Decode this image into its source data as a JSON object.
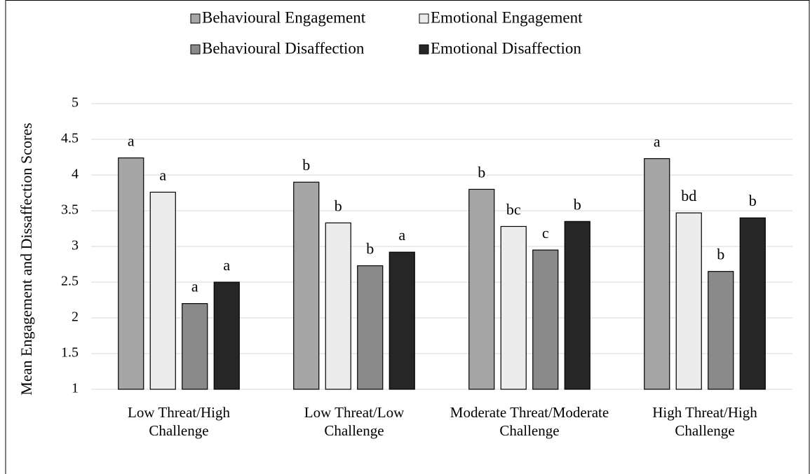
{
  "chart_data": {
    "type": "bar",
    "y_label": "Mean Engagement and Dissaffection Scores",
    "categories": [
      "Low Threat/High Challenge",
      "Low Threat/Low Challenge",
      "Moderate Threat/Moderate Challenge",
      "High Threat/High Challenge"
    ],
    "series": [
      {
        "name": "Behavioural Engagement",
        "color": "#a6a6a6",
        "values": [
          4.24,
          3.9,
          3.8,
          4.23
        ],
        "labels": [
          "a",
          "b",
          "b",
          "a"
        ]
      },
      {
        "name": "Emotional Engagement",
        "color": "#ececec",
        "values": [
          3.76,
          3.33,
          3.28,
          3.47
        ],
        "labels": [
          "a",
          "b",
          "bc",
          "bd"
        ]
      },
      {
        "name": "Behavioural Disaffection",
        "color": "#8a8a8a",
        "values": [
          2.2,
          2.73,
          2.95,
          2.65
        ],
        "labels": [
          "a",
          "b",
          "c",
          "b"
        ]
      },
      {
        "name": "Emotional Disaffection",
        "color": "#262626",
        "values": [
          2.5,
          2.92,
          3.35,
          3.4
        ],
        "labels": [
          "a",
          "a",
          "b",
          "b"
        ]
      }
    ],
    "ylim": [
      1,
      5
    ],
    "yticks": [
      1,
      1.5,
      2,
      2.5,
      3,
      3.5,
      4,
      4.5,
      5
    ],
    "grid": true
  }
}
